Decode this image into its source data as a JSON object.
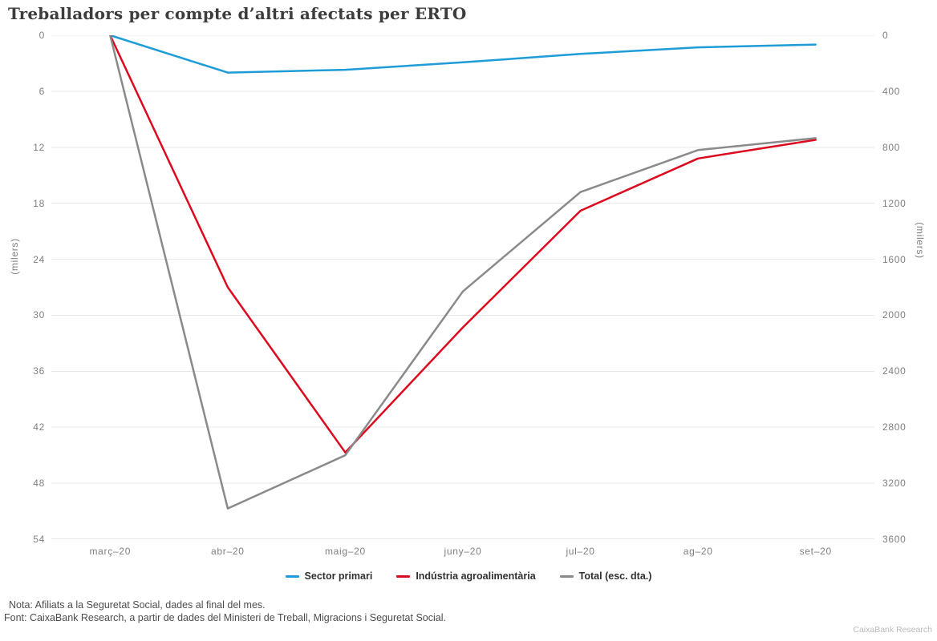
{
  "brand": "CaixaBank Research",
  "notes": {
    "nota": "Nota: Afiliats a la Seguretat Social, dades al final del mes.",
    "font": "Font: CaixaBank Research, a partir de dades del Ministeri de Treball, Migracions i Seguretat Social."
  },
  "colors": {
    "blue": "#1e9cd8",
    "red": "#dc0a1e",
    "gray": "#8a8a8a",
    "grid_line": "#e8e8e8",
    "axis_line": "#ccd2d9",
    "tick_text": "#7f7f7f"
  },
  "chart_data": {
    "type": "line",
    "title": "Treballadors per compte d’altri afectats per ERTO",
    "categories": [
      "març–20",
      "abr–20",
      "maig–20",
      "juny–20",
      "jul–20",
      "ag–20",
      "set–20"
    ],
    "left_axis": {
      "title": "(milers)",
      "min": 0,
      "max": 54,
      "step": 6,
      "inverted": true,
      "ticks": [
        0,
        6,
        12,
        18,
        24,
        30,
        36,
        42,
        48,
        54
      ]
    },
    "right_axis": {
      "title": "(milers)",
      "min": 0,
      "max": 3600,
      "step": 400,
      "inverted": true,
      "ticks": [
        0,
        400,
        800,
        1200,
        1600,
        2000,
        2400,
        2800,
        3200,
        3600
      ]
    },
    "grid": "horizontal",
    "legend_position": "bottom",
    "series": [
      {
        "id": "sector-primari",
        "name": "Sector primari",
        "axis": "left",
        "color": "#1e9cd8",
        "values": [
          0,
          4.0,
          3.7,
          2.9,
          2.0,
          1.3,
          1.0
        ]
      },
      {
        "id": "industria-agroalimentaria",
        "name": "Indústria agroalimentària",
        "axis": "left",
        "color": "#dc0a1e",
        "values": [
          0,
          27.0,
          44.7,
          31.3,
          18.8,
          13.2,
          11.2
        ]
      },
      {
        "id": "total",
        "name": "Total (esc. dta.)",
        "axis": "right",
        "color": "#8a8a8a",
        "values": [
          0,
          3380,
          3000,
          1830,
          1120,
          820,
          735
        ]
      }
    ]
  }
}
